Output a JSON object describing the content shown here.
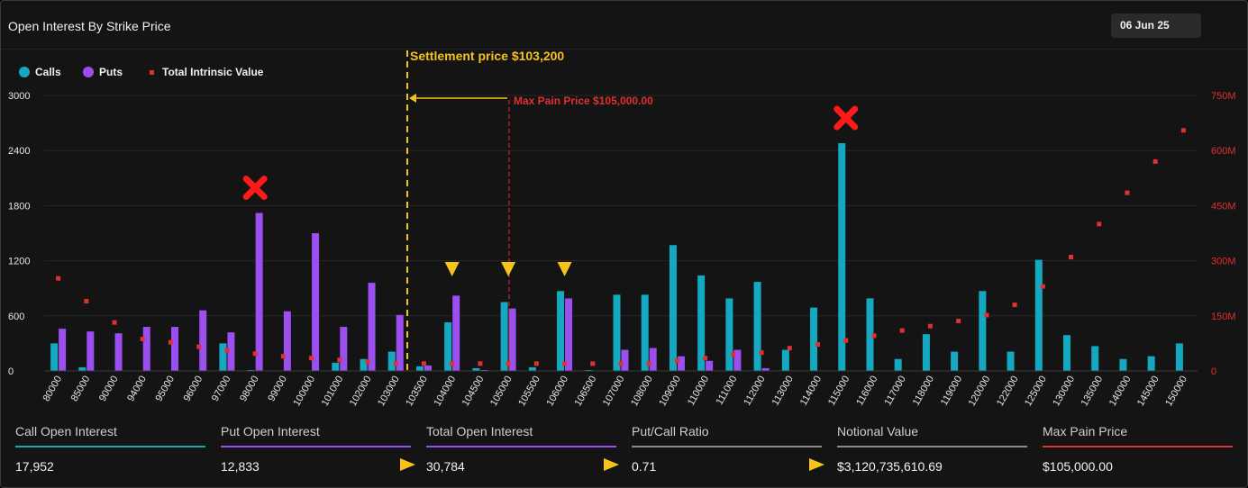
{
  "header": {
    "title": "Open Interest By Strike Price",
    "date": "06 Jun 25"
  },
  "legend": [
    {
      "label": "Calls",
      "color": "#14a9c1",
      "shape": "circle"
    },
    {
      "label": "Puts",
      "color": "#9b4ff0",
      "shape": "circle"
    },
    {
      "label": "Total Intrinsic Value",
      "color": "#e03030",
      "shape": "square"
    }
  ],
  "annotations": {
    "settlement": "Settlement price $103,200",
    "max_pain": "Max Pain Price $105,000.00"
  },
  "chart_data": {
    "type": "bar",
    "categories": [
      "80000",
      "85000",
      "90000",
      "94000",
      "95000",
      "96000",
      "97000",
      "98000",
      "99000",
      "100000",
      "101000",
      "102000",
      "103000",
      "103500",
      "104000",
      "104500",
      "105000",
      "105500",
      "106000",
      "106500",
      "107000",
      "108000",
      "109000",
      "110000",
      "111000",
      "112000",
      "113000",
      "114000",
      "115000",
      "116000",
      "117000",
      "118000",
      "119000",
      "120000",
      "122000",
      "125000",
      "130000",
      "135000",
      "140000",
      "145000",
      "150000"
    ],
    "series": [
      {
        "name": "Calls",
        "color": "#14a9c1",
        "values": [
          300,
          40,
          0,
          0,
          0,
          0,
          300,
          10,
          0,
          0,
          90,
          130,
          210,
          50,
          530,
          30,
          750,
          40,
          870,
          10,
          830,
          830,
          1370,
          1040,
          790,
          970,
          230,
          690,
          2480,
          790,
          130,
          400,
          210,
          870,
          210,
          1210,
          390,
          270,
          130,
          160,
          300
        ]
      },
      {
        "name": "Puts",
        "color": "#9b4ff0",
        "values": [
          460,
          430,
          410,
          480,
          480,
          660,
          420,
          1720,
          650,
          1500,
          480,
          960,
          610,
          60,
          820,
          10,
          680,
          0,
          790,
          0,
          230,
          250,
          160,
          110,
          230,
          30,
          0,
          0,
          0,
          0,
          0,
          0,
          0,
          0,
          0,
          0,
          0,
          0,
          0,
          0,
          0
        ]
      },
      {
        "name": "Total Intrinsic Value",
        "color": "#e03030",
        "axis": "right",
        "values": [
          252,
          190,
          132,
          87,
          78,
          66,
          56,
          47,
          40,
          35,
          30,
          25,
          20,
          20,
          20,
          20,
          20,
          20,
          20,
          20,
          20,
          20,
          28,
          35,
          45,
          50,
          62,
          72,
          83,
          96,
          110,
          122,
          136,
          152,
          180,
          230,
          310,
          400,
          485,
          570,
          655
        ]
      }
    ],
    "y_left": {
      "ticks": [
        "0",
        "600",
        "1200",
        "1800",
        "2400",
        "3000"
      ],
      "max": 3000
    },
    "y_right": {
      "ticks": [
        "0",
        "150M",
        "300M",
        "450M",
        "600M",
        "750M"
      ],
      "max": 750
    },
    "grid": true,
    "legend_position": "top-left",
    "markers": {
      "x_marks_on": [
        "98000",
        "115000"
      ],
      "triangles_on": [
        "104000",
        "105000",
        "106000"
      ],
      "settlement_value": 103200,
      "max_pain_value": 105000
    }
  },
  "stats": [
    {
      "label": "Call Open Interest",
      "value": "17,952",
      "color": "#14a9c1"
    },
    {
      "label": "Put Open Interest",
      "value": "12,833",
      "color": "#9b4ff0"
    },
    {
      "label": "Total Open Interest",
      "value": "30,784",
      "color": "#9b4ff0"
    },
    {
      "label": "Put/Call Ratio",
      "value": "0.71",
      "color": "#8a8a8a"
    },
    {
      "label": "Notional Value",
      "value": "$3,120,735,610.69",
      "color": "#8a8a8a"
    },
    {
      "label": "Max Pain Price",
      "value": "$105,000.00",
      "color": "#e03030"
    }
  ]
}
